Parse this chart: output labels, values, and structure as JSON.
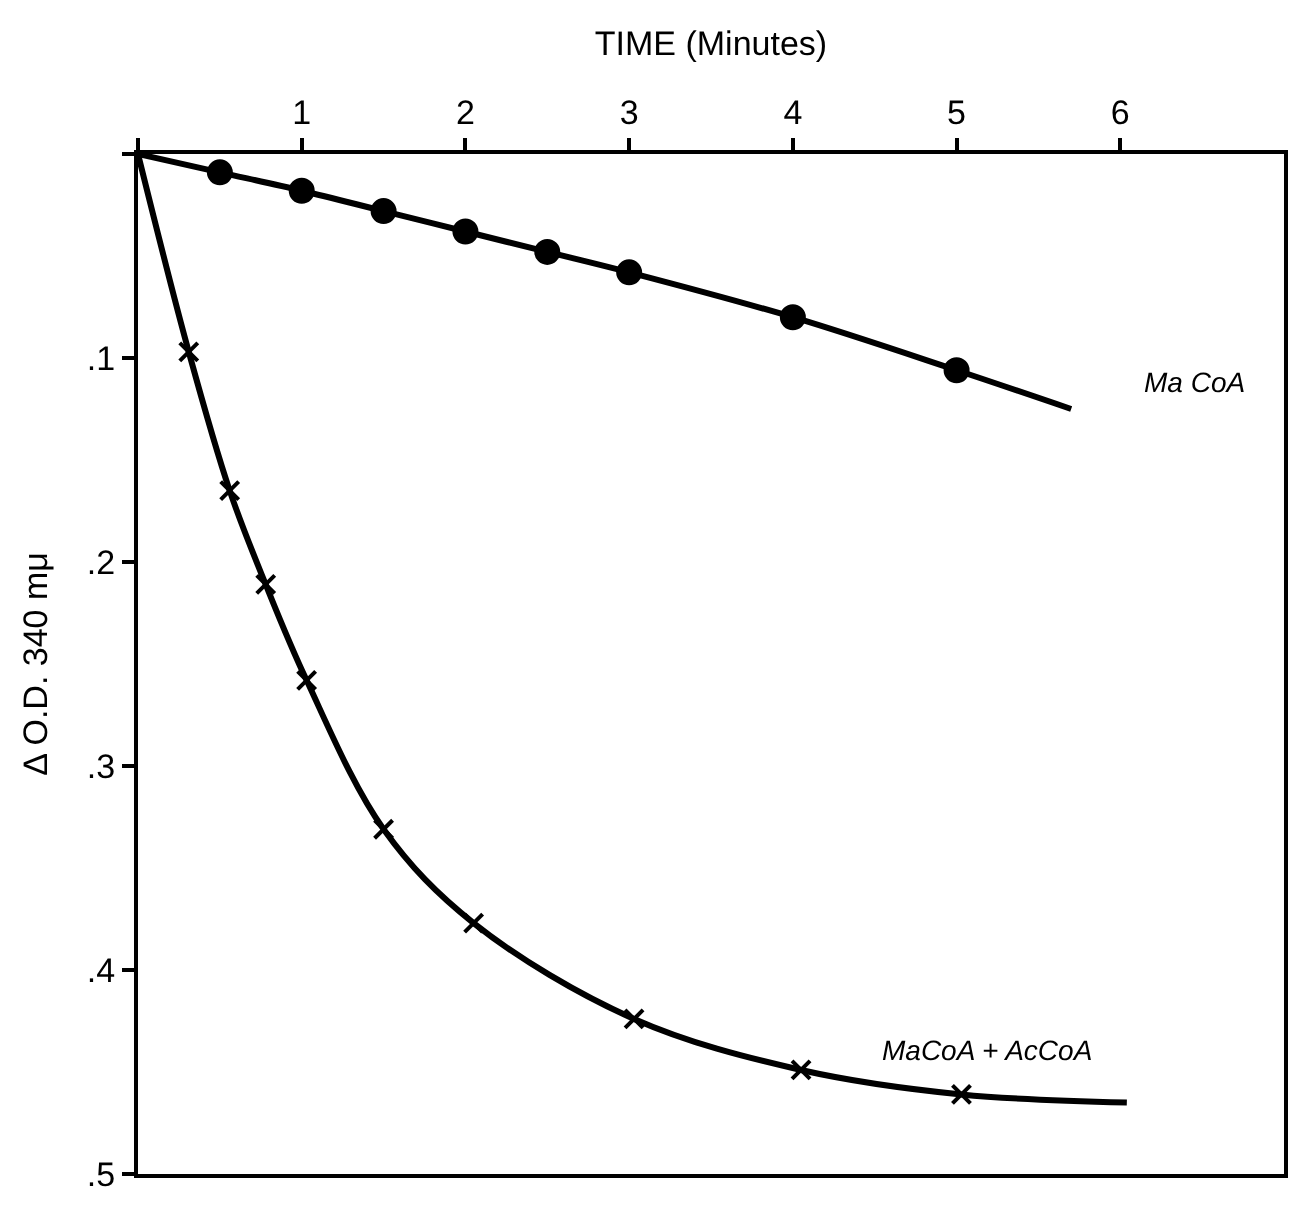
{
  "chart_data": {
    "type": "line",
    "xlabel": "TIME (Minutes)",
    "ylabel": "Δ O.D. 340 mμ",
    "series": [
      {
        "name": "Ma CoA",
        "color": "#000000",
        "marker": "none",
        "x": [
          0,
          0.5,
          1,
          1.5,
          2,
          2.5,
          3,
          4,
          5,
          5.7
        ],
        "values": [
          0,
          0.009,
          0.018,
          0.028,
          0.038,
          0.048,
          0.058,
          0.08,
          0.106,
          0.125
        ]
      },
      {
        "type": "scatter",
        "color": "#000000",
        "marker": "circle",
        "x": [
          0.5,
          1,
          1.5,
          2,
          2.5,
          3,
          4,
          5
        ],
        "values": [
          0.009,
          0.018,
          0.028,
          0.038,
          0.048,
          0.058,
          0.08,
          0.106
        ]
      },
      {
        "name": "MaCoA + AcCoA",
        "color": "#000000",
        "marker": "none",
        "x": [
          0,
          0.31,
          0.56,
          0.78,
          1.03,
          1.5,
          2.05,
          3.03,
          4.05,
          5.03,
          6.04
        ],
        "values": [
          0,
          0.097,
          0.165,
          0.211,
          0.258,
          0.331,
          0.377,
          0.424,
          0.449,
          0.461,
          0.465
        ]
      },
      {
        "type": "scatter",
        "color": "#000000",
        "marker": "cross",
        "x": [
          0.31,
          0.56,
          0.78,
          1.03,
          1.5,
          2.05,
          3.03,
          4.05,
          5.03
        ],
        "values": [
          0.097,
          0.165,
          0.211,
          0.258,
          0.331,
          0.377,
          0.424,
          0.449,
          0.461
        ]
      }
    ],
    "xlim": [
      0,
      7
    ],
    "xticks": [
      {
        "value": 0,
        "label": null
      },
      1,
      2,
      3,
      4,
      5,
      6
    ],
    "ylim": [
      0.5,
      0
    ],
    "yticks": [
      {
        "value": 0,
        "label": null
      },
      {
        "value": 0.1,
        "label": ".1"
      },
      {
        "value": 0.2,
        "label": ".2"
      },
      {
        "value": 0.3,
        "label": ".3"
      },
      {
        "value": 0.4,
        "label": ".4"
      },
      {
        "value": 0.5,
        "label": ".5"
      }
    ],
    "grid": false,
    "legend": false
  }
}
